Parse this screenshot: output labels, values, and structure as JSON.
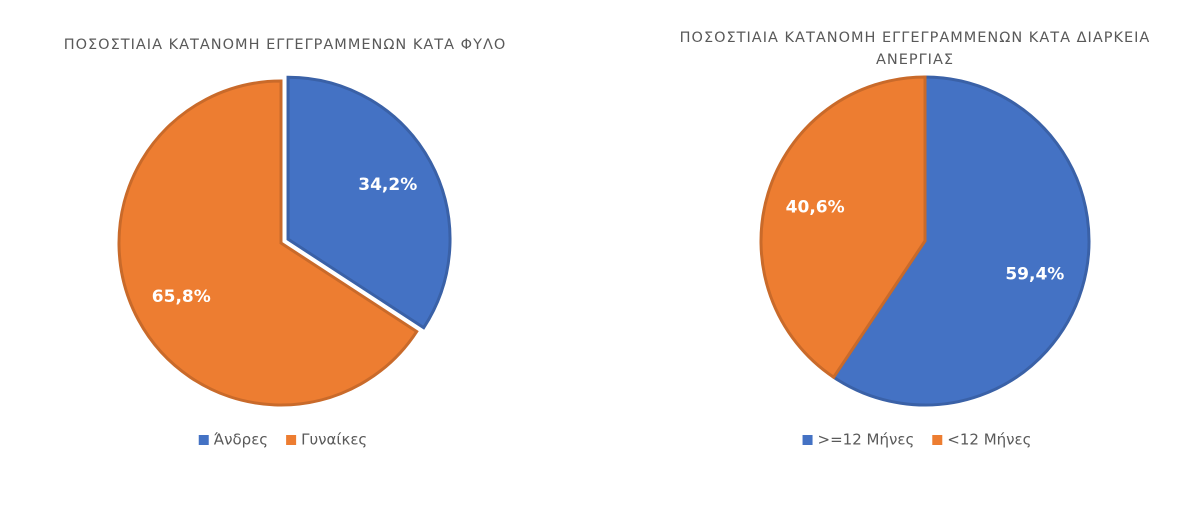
{
  "chart_data": [
    {
      "type": "pie",
      "title": "ΠΟΣΟΣΤΙΑΙΑ ΚΑΤΑΝΟΜΗ ΕΓΓΕΓΡΑΜΜΕΝΩΝ ΚΑΤΑ ΦΥΛΟ",
      "categories": [
        "Άνδρες",
        "Γυναίκες"
      ],
      "values": [
        34.2,
        65.8
      ],
      "value_labels": [
        "34,2%",
        "65,8%"
      ],
      "colors": [
        "#4472c4",
        "#ed7d31"
      ],
      "explode": [
        true,
        false
      ]
    },
    {
      "type": "pie",
      "title": "ΠΟΣΟΣΤΙΑΙΑ ΚΑΤΑΝΟΜΗ ΕΓΓΕΓΡΑΜΜΕΝΩΝ ΚΑΤΑ ΔΙΑΡΚΕΙΑ ΑΝΕΡΓΙΑΣ",
      "categories": [
        ">=12 Μήνες",
        "<12 Μήνες"
      ],
      "values": [
        59.4,
        40.6
      ],
      "value_labels": [
        "59,4%",
        "40,6%"
      ],
      "colors": [
        "#4472c4",
        "#ed7d31"
      ],
      "explode": [
        false,
        false
      ]
    }
  ]
}
